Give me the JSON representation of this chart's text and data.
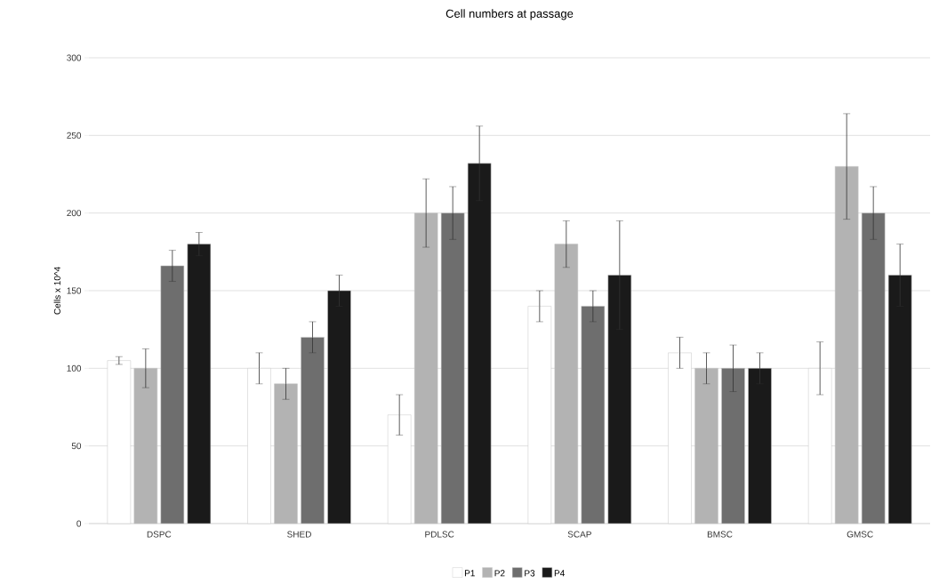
{
  "chart_data": {
    "type": "bar",
    "title": "Cell numbers at passage",
    "ylabel": "Cells x 10^4",
    "categories": [
      "DSPC",
      "SHED",
      "PDLSC",
      "SCAP",
      "BMSC",
      "GMSC"
    ],
    "series": [
      {
        "name": "P1",
        "color": "#ffffff",
        "values": [
          105,
          100,
          70,
          140,
          110,
          100
        ],
        "errors": [
          2.5,
          10,
          13,
          10,
          10,
          17
        ]
      },
      {
        "name": "P2",
        "color": "#b3b3b3",
        "values": [
          100,
          90,
          200,
          180,
          100,
          230
        ],
        "errors": [
          12.5,
          10,
          22,
          15,
          10,
          34
        ]
      },
      {
        "name": "P3",
        "color": "#6e6e6e",
        "values": [
          166,
          120,
          200,
          140,
          100,
          200
        ],
        "errors": [
          10,
          10,
          17,
          10,
          15,
          17
        ]
      },
      {
        "name": "P4",
        "color": "#1a1a1a",
        "values": [
          180,
          150,
          232,
          160,
          100,
          160
        ],
        "errors": [
          7.5,
          10,
          24,
          35,
          10,
          20
        ]
      }
    ],
    "ylim": [
      0,
      300
    ],
    "yticks": [
      0,
      50,
      100,
      150,
      200,
      250,
      300
    ],
    "grid": "y",
    "legend": "bottom"
  }
}
